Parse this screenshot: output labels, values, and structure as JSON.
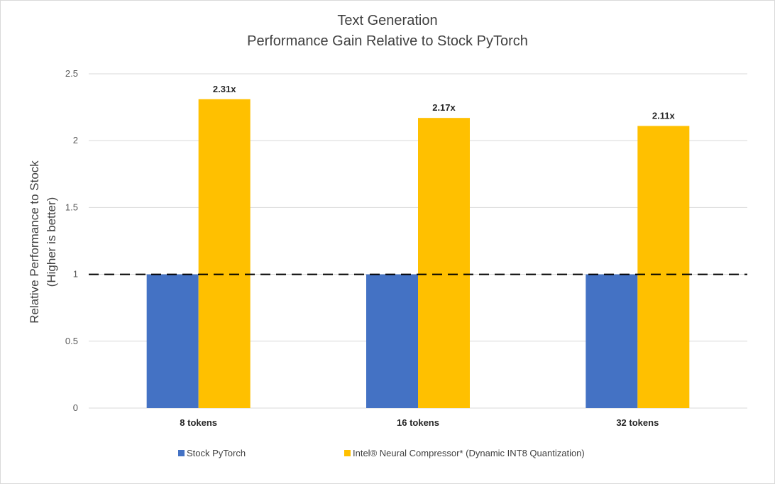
{
  "chart_data": {
    "type": "bar",
    "title_line1": "Text Generation",
    "title_line2": "Performance Gain Relative to Stock PyTorch",
    "ylabel_line1": "Relative  Performance to Stock",
    "ylabel_line2": "(Higher is better)",
    "xlabel": "",
    "categories": [
      "8 tokens",
      "16 tokens",
      "32 tokens"
    ],
    "series": [
      {
        "name": "Stock PyTorch",
        "color": "#4472C4",
        "values": [
          1,
          1,
          1
        ],
        "labels": [
          "",
          "",
          ""
        ]
      },
      {
        "name": "Intel® Neural Compressor* (Dynamic INT8 Quantization)",
        "color": "#FFC000",
        "values": [
          2.31,
          2.17,
          2.11
        ],
        "labels": [
          "2.31x",
          "2.17x",
          "2.11x"
        ]
      }
    ],
    "ylim": [
      0,
      2.5
    ],
    "yticks": [
      0,
      0.5,
      1,
      1.5,
      2,
      2.5
    ],
    "ytick_labels": [
      "0",
      "0.5",
      "1",
      "1.5",
      "2",
      "2.5"
    ],
    "reference_line": {
      "value": 1,
      "style": "dashed",
      "color": "#000000"
    },
    "grid": true,
    "legend_position": "bottom"
  }
}
